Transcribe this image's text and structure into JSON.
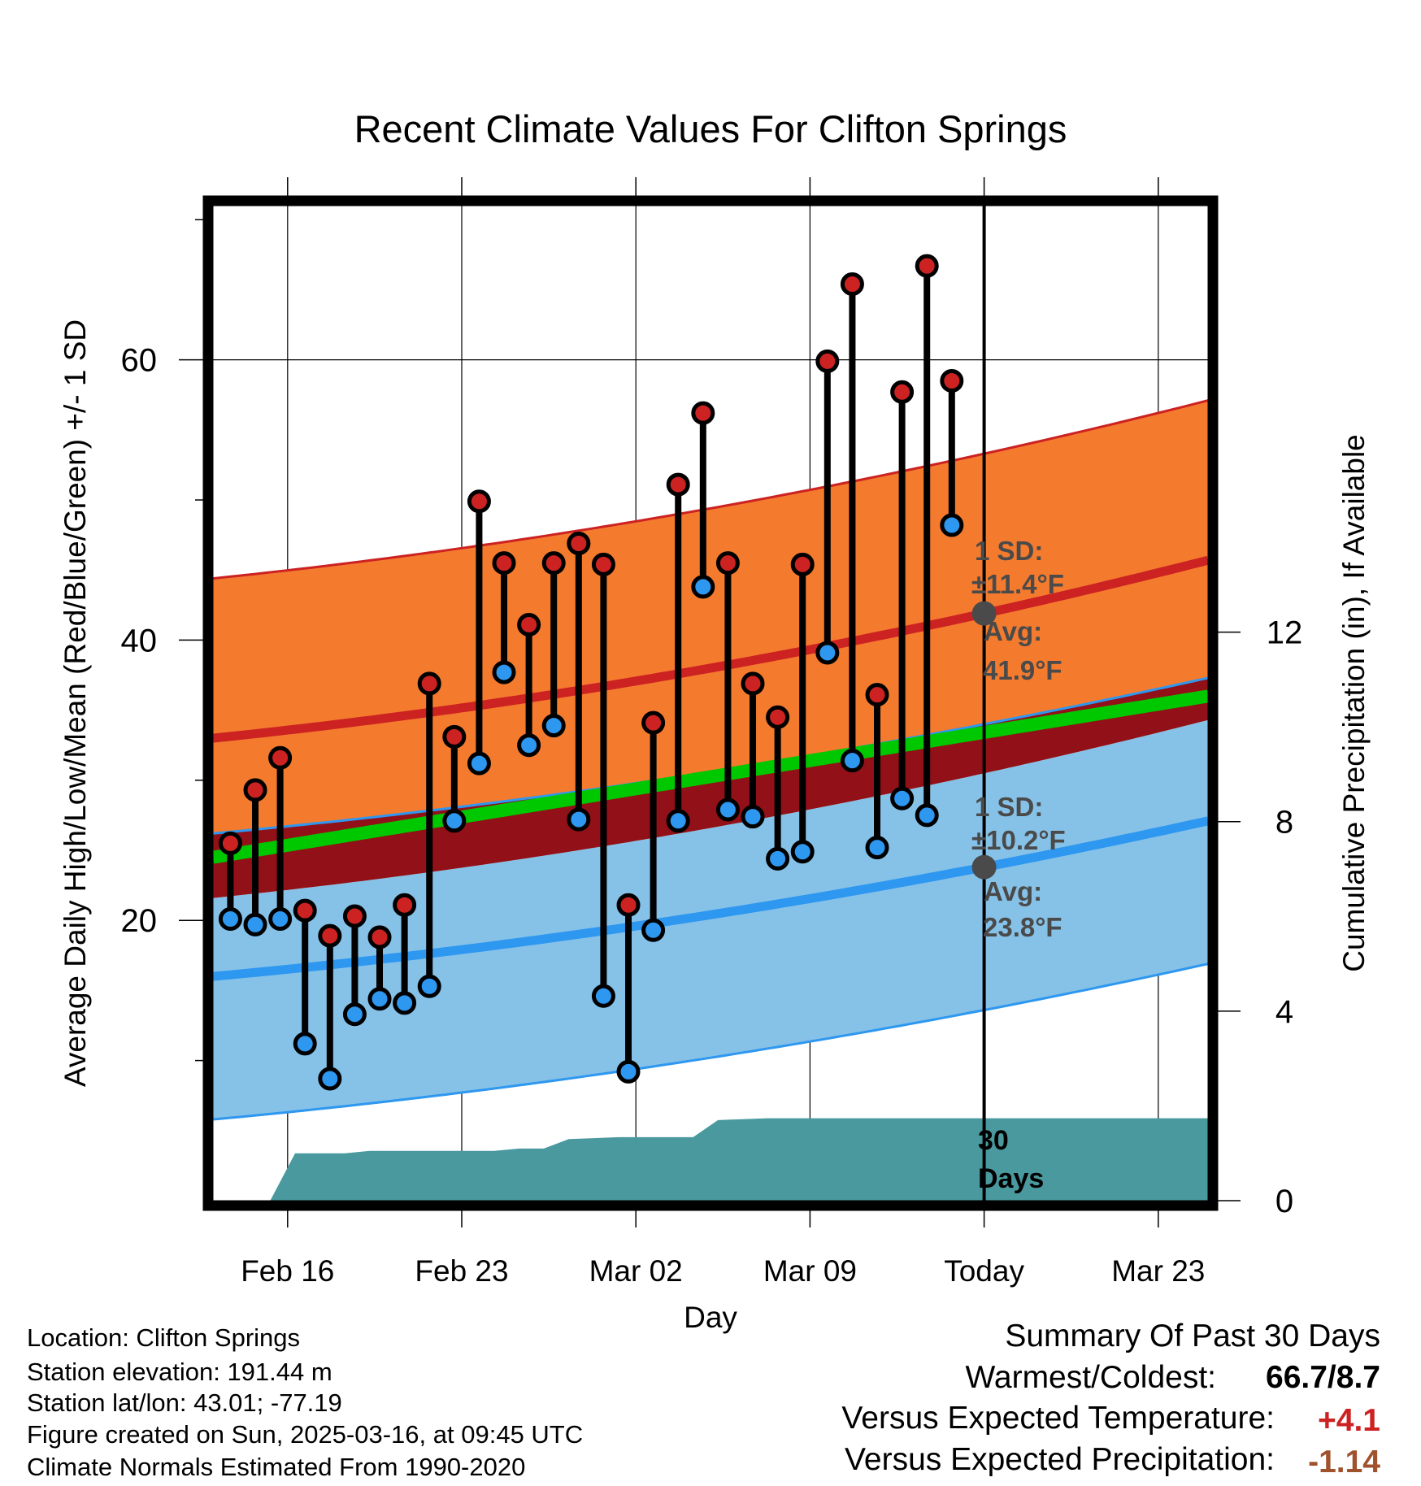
{
  "title": "Recent Climate Values For Clifton Springs",
  "chart_data": {
    "type": "line",
    "title": "Recent Climate Values For Clifton Springs",
    "xlabel": "Day",
    "ylabel": "Average Daily High/Low/Mean (Red/Blue/Green) +/- 1 SD",
    "y2label": "Cumulative Precipitation (in), If Available",
    "x_ticks": [
      "Feb 16",
      "Feb 23",
      "Mar 02",
      "Mar 09",
      "Today",
      "Mar 23"
    ],
    "y_ticks": [
      "20",
      "40",
      "60"
    ],
    "y2_ticks": [
      "0",
      "4",
      "8",
      "12"
    ],
    "ylim": [
      0,
      71
    ],
    "y2lim": [
      0,
      21
    ],
    "x_range_days": [
      "2025-02-13",
      "2025-03-25"
    ],
    "today": "2025-03-16",
    "daily_high": [
      25.5,
      29.3,
      31.6,
      20.7,
      18.9,
      20.3,
      18.8,
      21.1,
      36.9,
      33.1,
      49.9,
      45.5,
      41.1,
      45.5,
      46.9,
      45.4,
      21.1,
      34.1,
      51.1,
      56.2,
      45.5,
      36.9,
      34.5,
      45.4,
      59.9,
      65.4,
      36.1,
      57.7,
      66.7,
      58.5
    ],
    "daily_low": [
      20.1,
      19.7,
      20.1,
      11.2,
      8.7,
      13.3,
      14.4,
      14.1,
      15.3,
      27.1,
      31.2,
      37.7,
      32.5,
      33.9,
      27.2,
      14.6,
      9.2,
      19.3,
      27.1,
      43.8,
      27.9,
      27.4,
      24.4,
      24.9,
      39.1,
      31.4,
      25.2,
      28.7,
      27.5,
      48.2
    ],
    "normal_high": {
      "start": 33.0,
      "today": 41.9,
      "end": 45.7,
      "sd": 11.4
    },
    "normal_low": {
      "start": 16.0,
      "today": 23.8,
      "end": 27.1,
      "sd": 10.2
    },
    "normal_mean": {
      "start": 24.5,
      "end": 36.0
    },
    "cumulative_precip": [
      0,
      0,
      1.0,
      1.0,
      1.0,
      1.05,
      1.05,
      1.05,
      1.05,
      1.05,
      1.05,
      1.1,
      1.1,
      1.3,
      1.32,
      1.34,
      1.34,
      1.34,
      1.34,
      1.7,
      1.72,
      1.74,
      1.74,
      1.74,
      1.74,
      1.74,
      1.74,
      1.74,
      1.74,
      1.74
    ],
    "colors": {
      "high": "#cc2222",
      "low": "#2e97f0",
      "mean": "#00c800",
      "high_band": "#f47a2e",
      "low_band": "#86c2e8",
      "overlap_band": "#921017",
      "precip": "#49999f",
      "marker_line": "#000000",
      "avg_dot": "#4a4a4a"
    }
  },
  "annotations": {
    "high_sd_label": "1 SD:",
    "high_sd_value": "±11.4°F",
    "high_avg_label": "Avg:",
    "high_avg_value": "41.9°F",
    "low_sd_label": "1 SD:",
    "low_sd_value": "±10.2°F",
    "low_avg_label": "Avg:",
    "low_avg_value": "23.8°F",
    "days_number": "30",
    "days_label": "Days"
  },
  "info": {
    "location": "Location: Clifton Springs",
    "elevation": "Station elevation: 191.44 m",
    "latlon": "Station lat/lon: 43.01; -77.19",
    "created": "Figure created on Sun, 2025-03-16, at 09:45 UTC",
    "normals": "Climate Normals Estimated From 1990-2020"
  },
  "summary": {
    "heading": "Summary Of Past 30 Days",
    "warm_cold_label": "Warmest/Coldest:",
    "warm_cold_value": "66.7/8.7",
    "temp_label": "Versus Expected Temperature:",
    "temp_value": "+4.1",
    "temp_color": "#cc2222",
    "precip_label": "Versus Expected Precipitation:",
    "precip_value": "-1.14",
    "precip_color": "#a0522d"
  }
}
